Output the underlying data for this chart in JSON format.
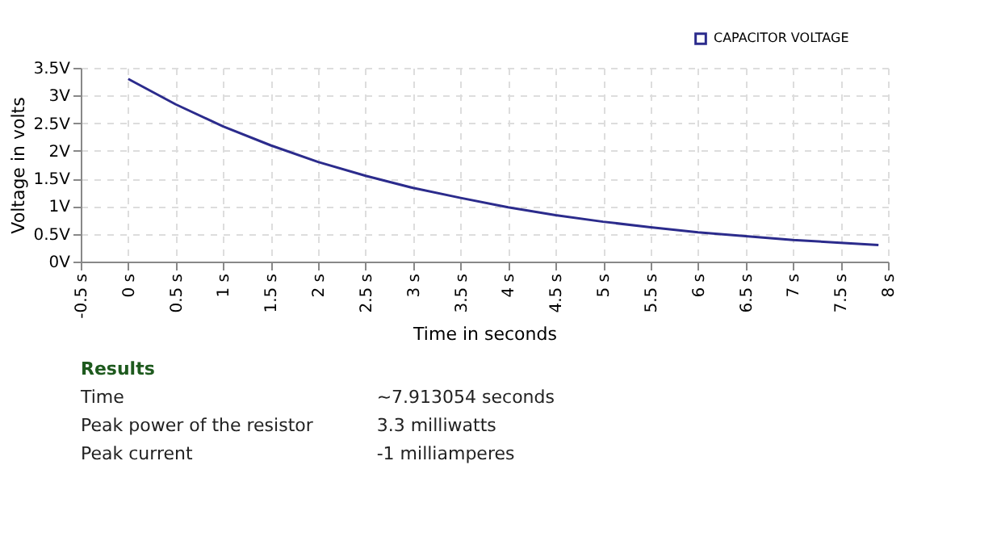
{
  "chart_data": {
    "type": "line",
    "xlabel": "Time in seconds",
    "ylabel": "Voltage in volts",
    "x": [
      0,
      0.5,
      1,
      1.5,
      2,
      2.5,
      3,
      3.5,
      4,
      4.5,
      5,
      5.5,
      6,
      6.5,
      7,
      7.5,
      7.9
    ],
    "series": [
      {
        "name": "CAPACITOR VOLTAGE",
        "color": "#2b2b8c",
        "values": [
          3.3,
          2.84,
          2.44,
          2.1,
          1.8,
          1.55,
          1.33,
          1.15,
          0.98,
          0.84,
          0.72,
          0.62,
          0.53,
          0.46,
          0.39,
          0.34,
          0.3
        ]
      }
    ],
    "xlim": [
      -0.5,
      8
    ],
    "ylim": [
      0,
      3.5
    ],
    "xticks": [
      {
        "value": -0.5,
        "label": "-0.5 s"
      },
      {
        "value": 0,
        "label": "0 s"
      },
      {
        "value": 0.5,
        "label": "0.5 s"
      },
      {
        "value": 1,
        "label": "1 s"
      },
      {
        "value": 1.5,
        "label": "1.5 s"
      },
      {
        "value": 2,
        "label": "2 s"
      },
      {
        "value": 2.5,
        "label": "2.5 s"
      },
      {
        "value": 3,
        "label": "3 s"
      },
      {
        "value": 3.5,
        "label": "3.5 s"
      },
      {
        "value": 4,
        "label": "4 s"
      },
      {
        "value": 4.5,
        "label": "4.5 s"
      },
      {
        "value": 5,
        "label": "5 s"
      },
      {
        "value": 5.5,
        "label": "5.5 s"
      },
      {
        "value": 6,
        "label": "6 s"
      },
      {
        "value": 6.5,
        "label": "6.5 s"
      },
      {
        "value": 7,
        "label": "7 s"
      },
      {
        "value": 7.5,
        "label": "7.5 s"
      },
      {
        "value": 8,
        "label": "8 s"
      }
    ],
    "yticks": [
      {
        "value": 0,
        "label": "0V"
      },
      {
        "value": 0.5,
        "label": "0.5V"
      },
      {
        "value": 1,
        "label": "1V"
      },
      {
        "value": 1.5,
        "label": "1.5V"
      },
      {
        "value": 2,
        "label": "2V"
      },
      {
        "value": 2.5,
        "label": "2.5V"
      },
      {
        "value": 3,
        "label": "3V"
      },
      {
        "value": 3.5,
        "label": "3.5V"
      }
    ],
    "grid": true,
    "legend": "top right",
    "marker": "none",
    "line_style": "solid",
    "annotations": [
      "Results",
      "Time",
      "~7.913054 seconds",
      "Peak power of the resistor",
      "3.3 milliwatts",
      "Peak current",
      "-1 milliamperes"
    ]
  }
}
